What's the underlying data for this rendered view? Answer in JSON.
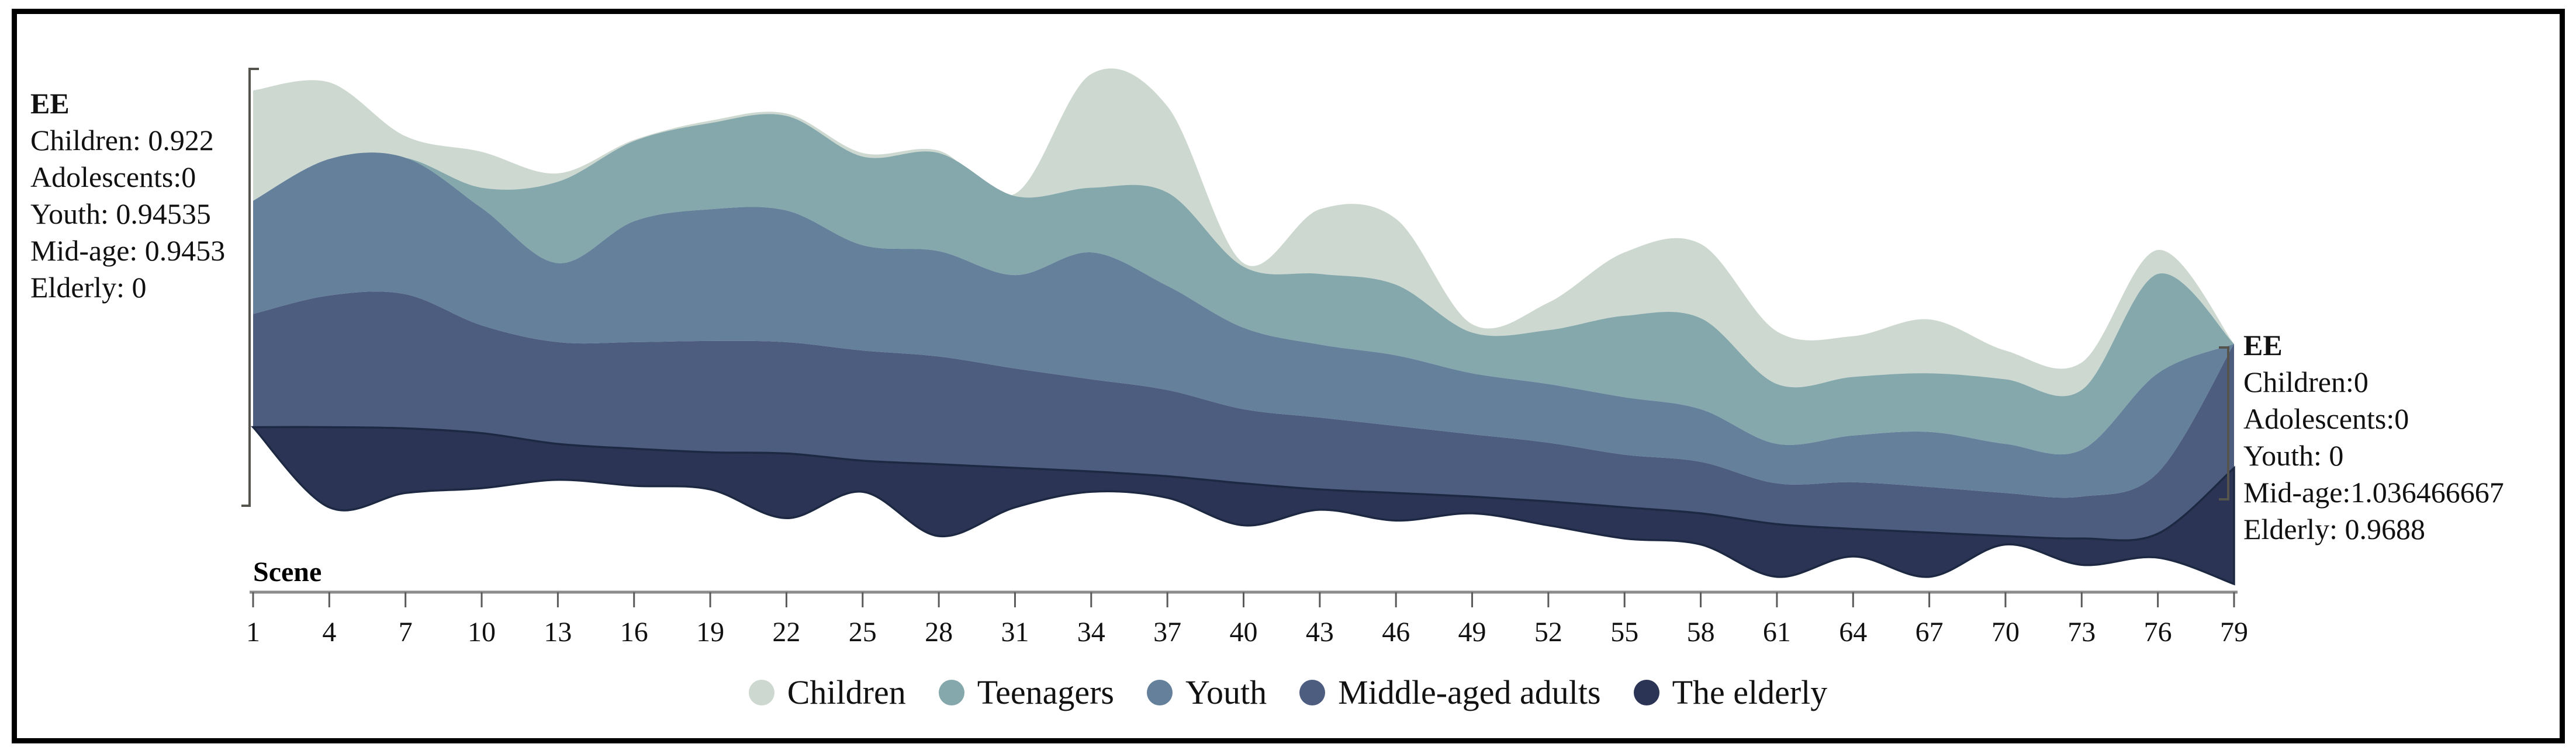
{
  "annotations": {
    "left": {
      "title": "EE",
      "lines": [
        "Children: 0.922",
        "Adolescents:0",
        "Youth: 0.94535",
        "Mid-age: 0.9453",
        "Elderly: 0"
      ]
    },
    "right": {
      "title": "EE",
      "lines": [
        "Children:0",
        "Adolescents:0",
        "Youth: 0",
        "Mid-age:1.036466667",
        "Elderly: 0.9688"
      ]
    }
  },
  "axis": {
    "label": "Scene"
  },
  "colors": {
    "axis_line": "#8c8c8c",
    "tick": "#5a5a5a",
    "text": "#111111",
    "bracket": "#55544c",
    "elderly_stroke": "#1d2942"
  },
  "chart_data": {
    "type": "area",
    "subtype": "streamgraph",
    "title": "",
    "xlabel": "Scene",
    "ylabel": "EE",
    "x_range": [
      1,
      79
    ],
    "x_ticks": [
      1,
      4,
      7,
      10,
      13,
      16,
      19,
      22,
      25,
      28,
      31,
      34,
      37,
      40,
      43,
      46,
      49,
      52,
      55,
      58,
      61,
      64,
      67,
      70,
      73,
      76,
      79
    ],
    "scenes": [
      1,
      4,
      7,
      10,
      13,
      16,
      19,
      22,
      25,
      28,
      31,
      34,
      37,
      40,
      43,
      46,
      49,
      52,
      55,
      58,
      61,
      64,
      67,
      70,
      73,
      76,
      79
    ],
    "legend_position": "bottom",
    "grid": false,
    "series": [
      {
        "name": "Children",
        "color": "#cdd8d0",
        "values": [
          0.922,
          0.64,
          0.18,
          0.3,
          0.07,
          0.01,
          0.02,
          0.02,
          0.03,
          0.02,
          0.02,
          0.95,
          0.72,
          0.03,
          0.54,
          0.55,
          0.07,
          0.23,
          0.53,
          0.62,
          0.44,
          0.34,
          0.45,
          0.24,
          0.23,
          0.2,
          0
        ]
      },
      {
        "name": "Teenagers",
        "color": "#85a8ac",
        "values": [
          0,
          0,
          0,
          0.17,
          0.68,
          0.67,
          0.72,
          0.79,
          0.74,
          0.82,
          0.66,
          0.54,
          0.78,
          0.51,
          0.59,
          0.59,
          0.34,
          0.45,
          0.68,
          0.76,
          0.5,
          0.49,
          0.49,
          0.54,
          0.5,
          0.83,
          0
        ]
      },
      {
        "name": "Youth",
        "color": "#64809b",
        "values": [
          0.94535,
          1.14,
          1.14,
          0.98,
          0.66,
          1.01,
          1.1,
          1.1,
          0.88,
          0.88,
          0.78,
          1.06,
          0.87,
          0.68,
          0.61,
          0.59,
          0.51,
          0.49,
          0.48,
          0.44,
          0.33,
          0.39,
          0.46,
          0.41,
          0.39,
          0.83,
          0
        ]
      },
      {
        "name": "Middle-aged adults",
        "color": "#4d5d80",
        "values": [
          0.9453,
          1.1,
          1.12,
          0.9,
          0.85,
          0.89,
          0.93,
          0.93,
          0.92,
          0.9,
          0.83,
          0.77,
          0.72,
          0.62,
          0.6,
          0.56,
          0.52,
          0.49,
          0.44,
          0.43,
          0.34,
          0.39,
          0.38,
          0.36,
          0.35,
          0.51,
          1.036466667
        ]
      },
      {
        "name": "The elderly",
        "color": "#2b3454",
        "values": [
          0,
          0.67,
          0.54,
          0.46,
          0.3,
          0.31,
          0.31,
          0.54,
          0.26,
          0.6,
          0.33,
          0.17,
          0.18,
          0.35,
          0.17,
          0.23,
          0.14,
          0.2,
          0.26,
          0.26,
          0.44,
          0.23,
          0.37,
          0.07,
          0.22,
          0.2,
          0.9688
        ]
      }
    ],
    "baseline_offset": [
      1.31,
      0.64,
      0.76,
      0.8,
      0.87,
      0.82,
      0.79,
      0.55,
      0.77,
      0.4,
      0.64,
      0.77,
      0.72,
      0.49,
      0.62,
      0.53,
      0.59,
      0.49,
      0.38,
      0.33,
      0.06,
      0.23,
      0.06,
      0.33,
      0.16,
      0.22,
      0
    ]
  }
}
